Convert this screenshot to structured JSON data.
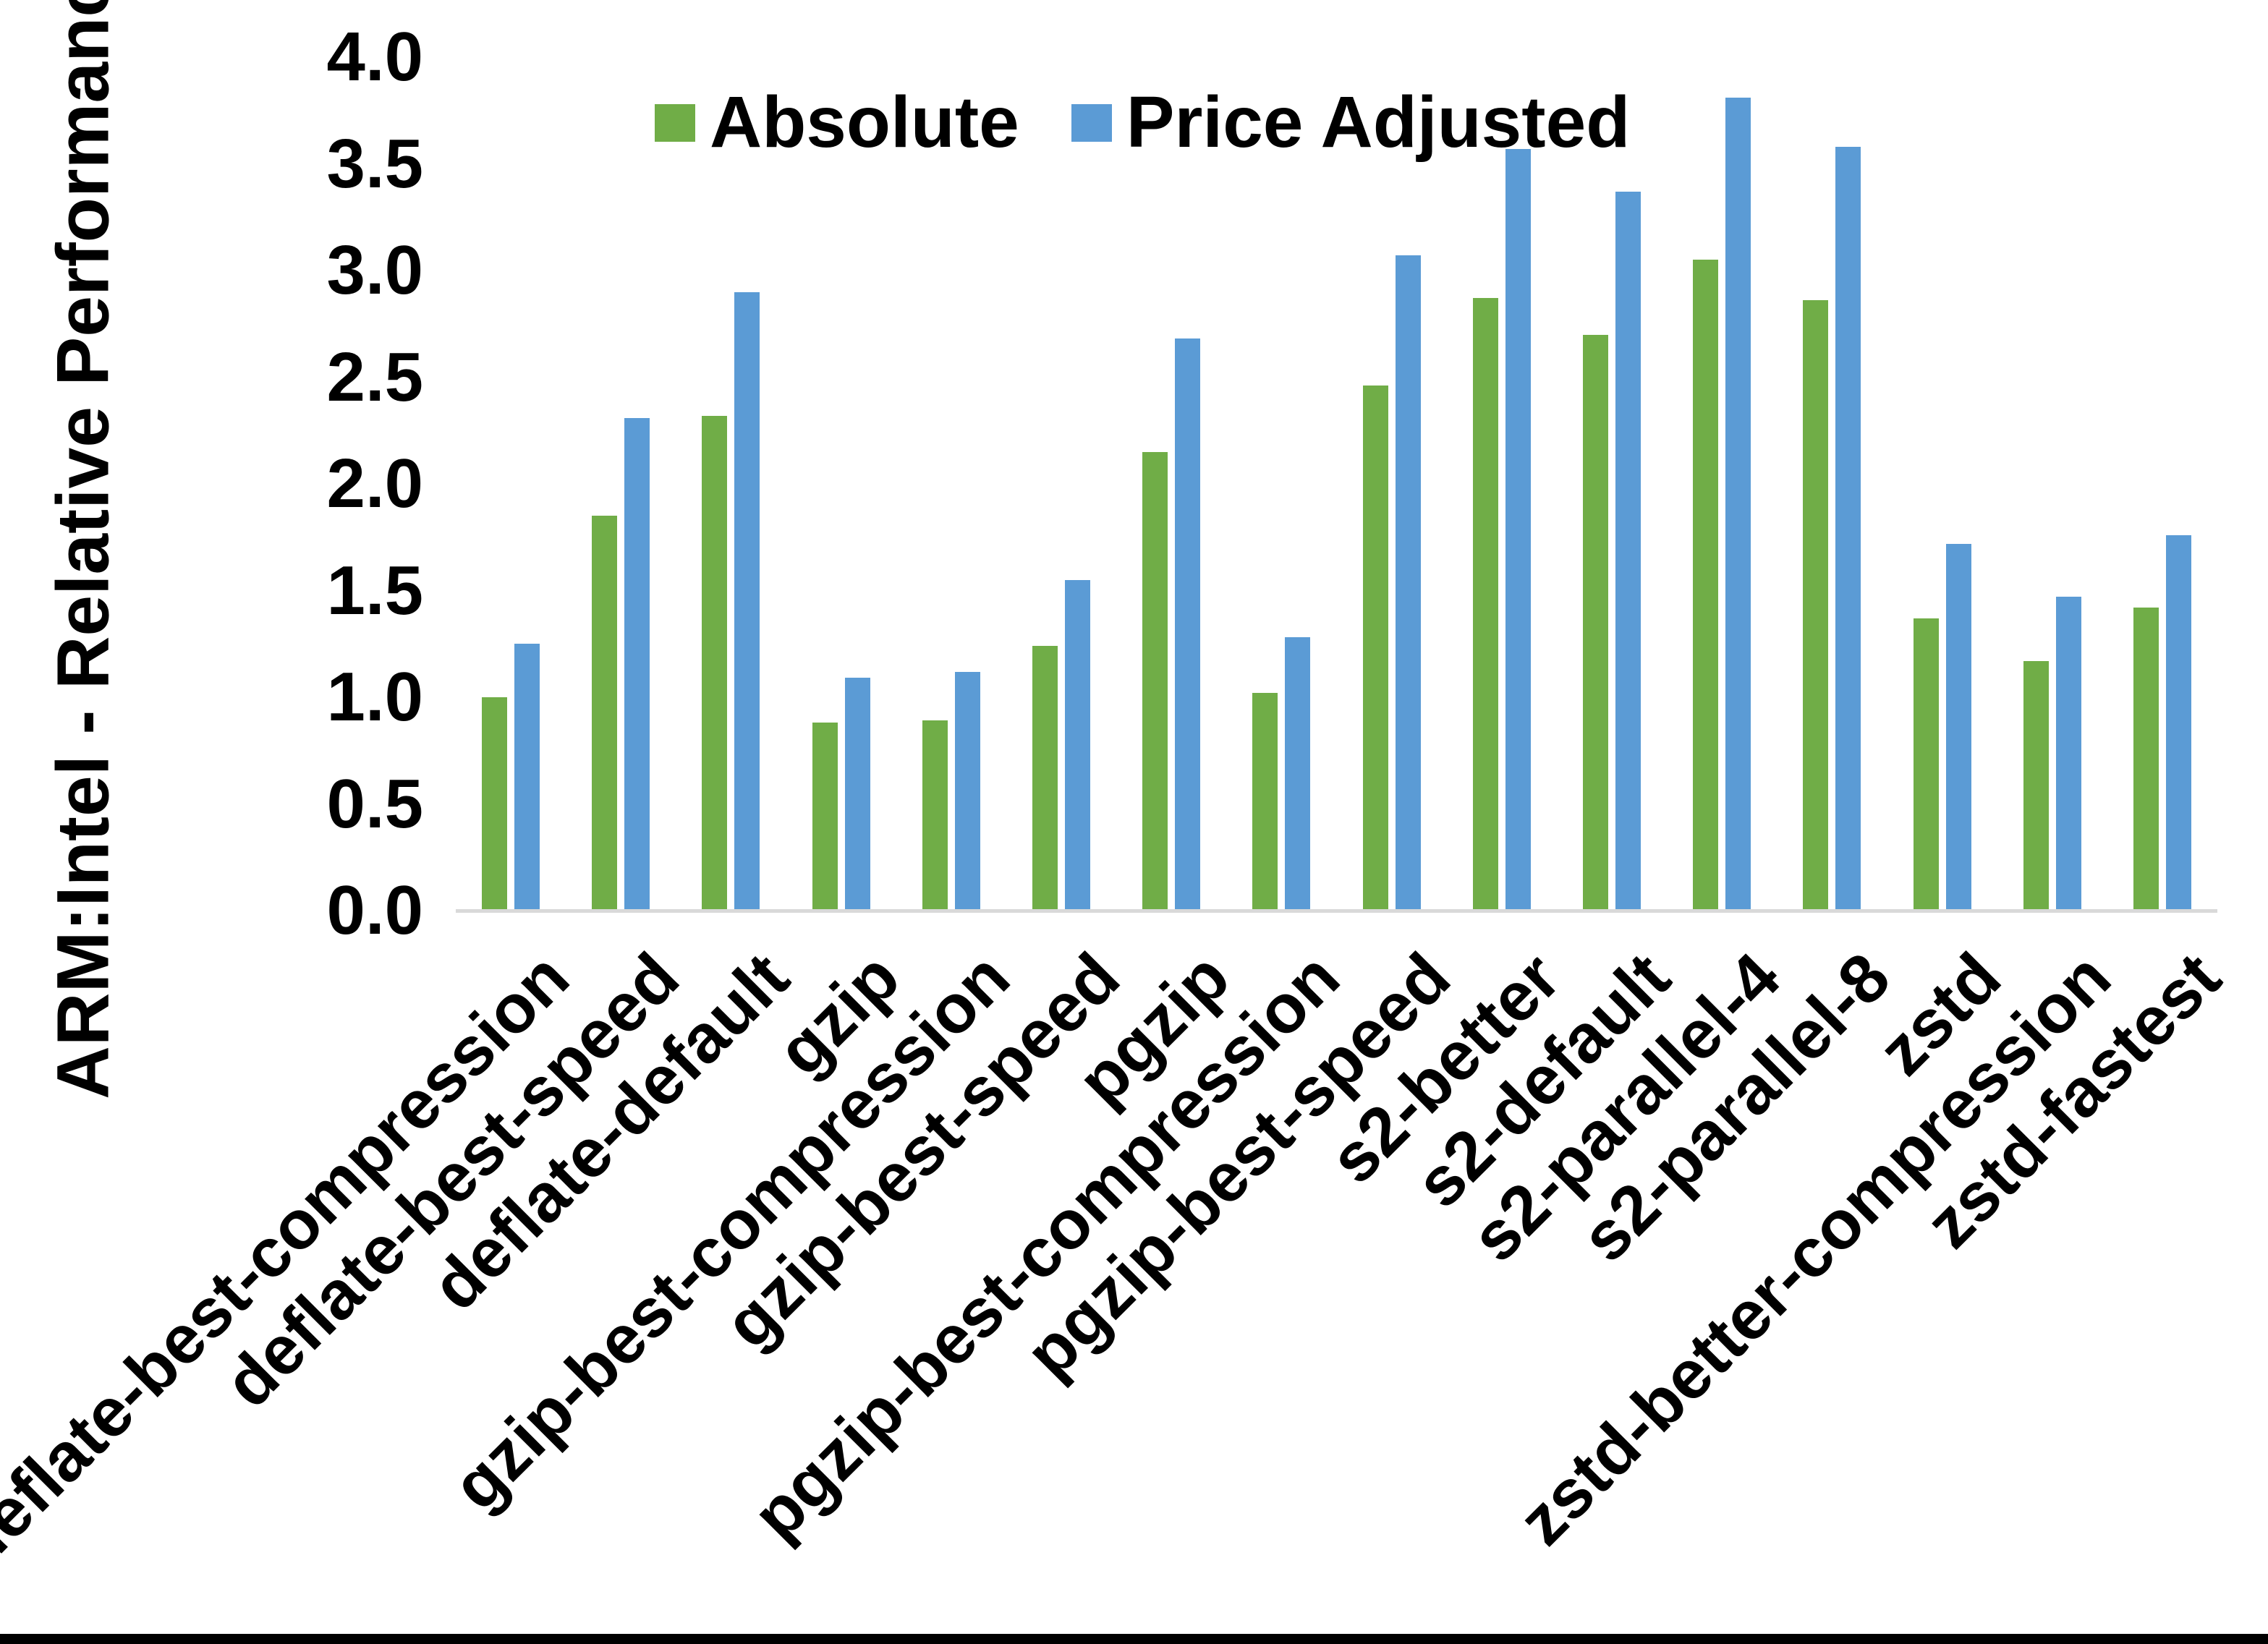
{
  "chart_data": {
    "type": "bar",
    "title": "",
    "ylabel": "ARM:Intel - Relative Performance",
    "xlabel": "",
    "ylim": [
      0.0,
      4.0
    ],
    "ytick_step": 0.5,
    "yticks": [
      "4.0",
      "3.5",
      "3.0",
      "2.5",
      "2.0",
      "1.5",
      "1.0",
      "0.5",
      "0.0"
    ],
    "grid": false,
    "legend_position": "top-center",
    "categories": [
      "deflate-best-compression",
      "deflate-best-speed",
      "deflate-default",
      "gzip",
      "gzip-best-compression",
      "gzip-best-speed",
      "pgzip",
      "pgzip-best-compression",
      "pgzip-best-speed",
      "s2-better",
      "s2-default",
      "s2-parallel-4",
      "s2-parallel-8",
      "zstd",
      "zstd-better-compression",
      "zstd-fastest"
    ],
    "series": [
      {
        "name": "Absolute",
        "color": "#70AD47",
        "values": [
          1.0,
          1.85,
          2.32,
          0.88,
          0.89,
          1.24,
          2.15,
          1.02,
          2.46,
          2.87,
          2.7,
          3.05,
          2.86,
          1.37,
          1.17,
          1.42
        ]
      },
      {
        "name": "Price Adjusted",
        "color": "#5B9BD5",
        "values": [
          1.25,
          2.31,
          2.9,
          1.09,
          1.12,
          1.55,
          2.68,
          1.28,
          3.07,
          3.57,
          3.37,
          3.81,
          3.58,
          1.72,
          1.47,
          1.76
        ]
      }
    ]
  },
  "colors": {
    "background": "#FFFFFF",
    "text": "#000000",
    "axis_line": "#D9D9D9",
    "bottom_border": "#000000"
  }
}
